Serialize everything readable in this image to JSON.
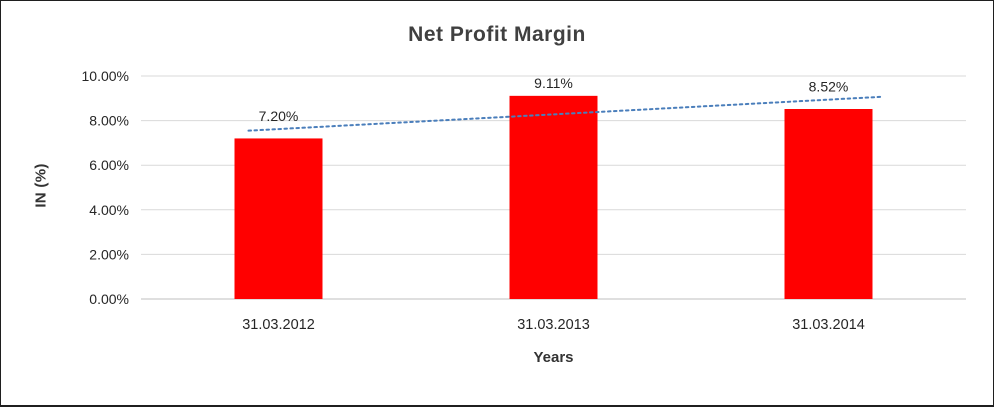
{
  "chart_data": {
    "type": "bar",
    "title": "Net Profit Margin",
    "categories": [
      "31.03.2012",
      "31.03.2013",
      "31.03.2014"
    ],
    "series": [
      {
        "name": "Net Profit Margin",
        "values": [
          7.2,
          9.11,
          8.52
        ]
      }
    ],
    "data_labels": [
      "7.20%",
      "9.11%",
      "8.52%"
    ],
    "xlabel": "Years",
    "ylabel": "IN (%)",
    "ylim": [
      0,
      10
    ],
    "ytick_step": 2,
    "ytick_labels": [
      "0.00%",
      "2.00%",
      "4.00%",
      "6.00%",
      "8.00%",
      "10.00%"
    ],
    "grid": true,
    "legend": "none",
    "bar_color": "#FF0000",
    "gridline_color": "#D9D9D9",
    "axisline_color": "#BFBFBF",
    "trendline": {
      "type": "linear",
      "style": "dotted",
      "color": "#4A7EBB",
      "points_at_categories": [
        7.62,
        8.28,
        8.94
      ]
    }
  }
}
